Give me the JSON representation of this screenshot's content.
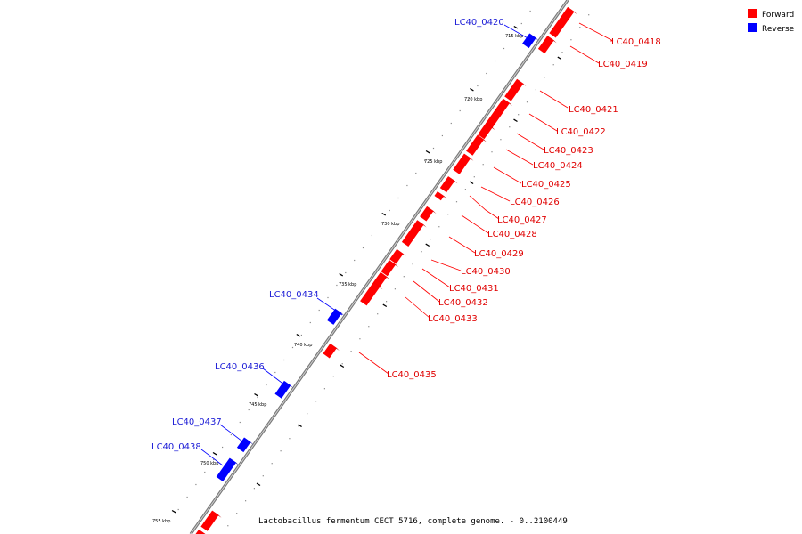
{
  "legend": {
    "forward_label": "Forward",
    "reverse_label": "Reverse",
    "forward_color": "#ff0000",
    "reverse_color": "#0000ff"
  },
  "caption": "Lactobacillus fermentum CECT 5716, complete genome. - 0..2100449",
  "tick_labels": [
    "715 kbp",
    "720 kbp",
    "725 kbp",
    "730 kbp",
    "735 kbp",
    "740 kbp",
    "745 kbp",
    "750 kbp",
    "755 kbp"
  ],
  "genes": [
    {
      "name": "LC40_0418",
      "strand": "forward"
    },
    {
      "name": "LC40_0419",
      "strand": "forward"
    },
    {
      "name": "LC40_0420",
      "strand": "reverse"
    },
    {
      "name": "LC40_0421",
      "strand": "forward"
    },
    {
      "name": "LC40_0422",
      "strand": "forward"
    },
    {
      "name": "LC40_0423",
      "strand": "forward"
    },
    {
      "name": "LC40_0424",
      "strand": "forward"
    },
    {
      "name": "LC40_0425",
      "strand": "forward"
    },
    {
      "name": "LC40_0426",
      "strand": "forward"
    },
    {
      "name": "LC40_0427",
      "strand": "forward"
    },
    {
      "name": "LC40_0428",
      "strand": "forward"
    },
    {
      "name": "LC40_0429",
      "strand": "forward"
    },
    {
      "name": "LC40_0430",
      "strand": "forward"
    },
    {
      "name": "LC40_0431",
      "strand": "forward"
    },
    {
      "name": "LC40_0432",
      "strand": "forward"
    },
    {
      "name": "LC40_0433",
      "strand": "forward"
    },
    {
      "name": "LC40_0434",
      "strand": "reverse"
    },
    {
      "name": "LC40_0435",
      "strand": "forward"
    },
    {
      "name": "LC40_0436",
      "strand": "reverse"
    },
    {
      "name": "LC40_0437",
      "strand": "reverse"
    },
    {
      "name": "LC40_0438",
      "strand": "reverse"
    }
  ]
}
